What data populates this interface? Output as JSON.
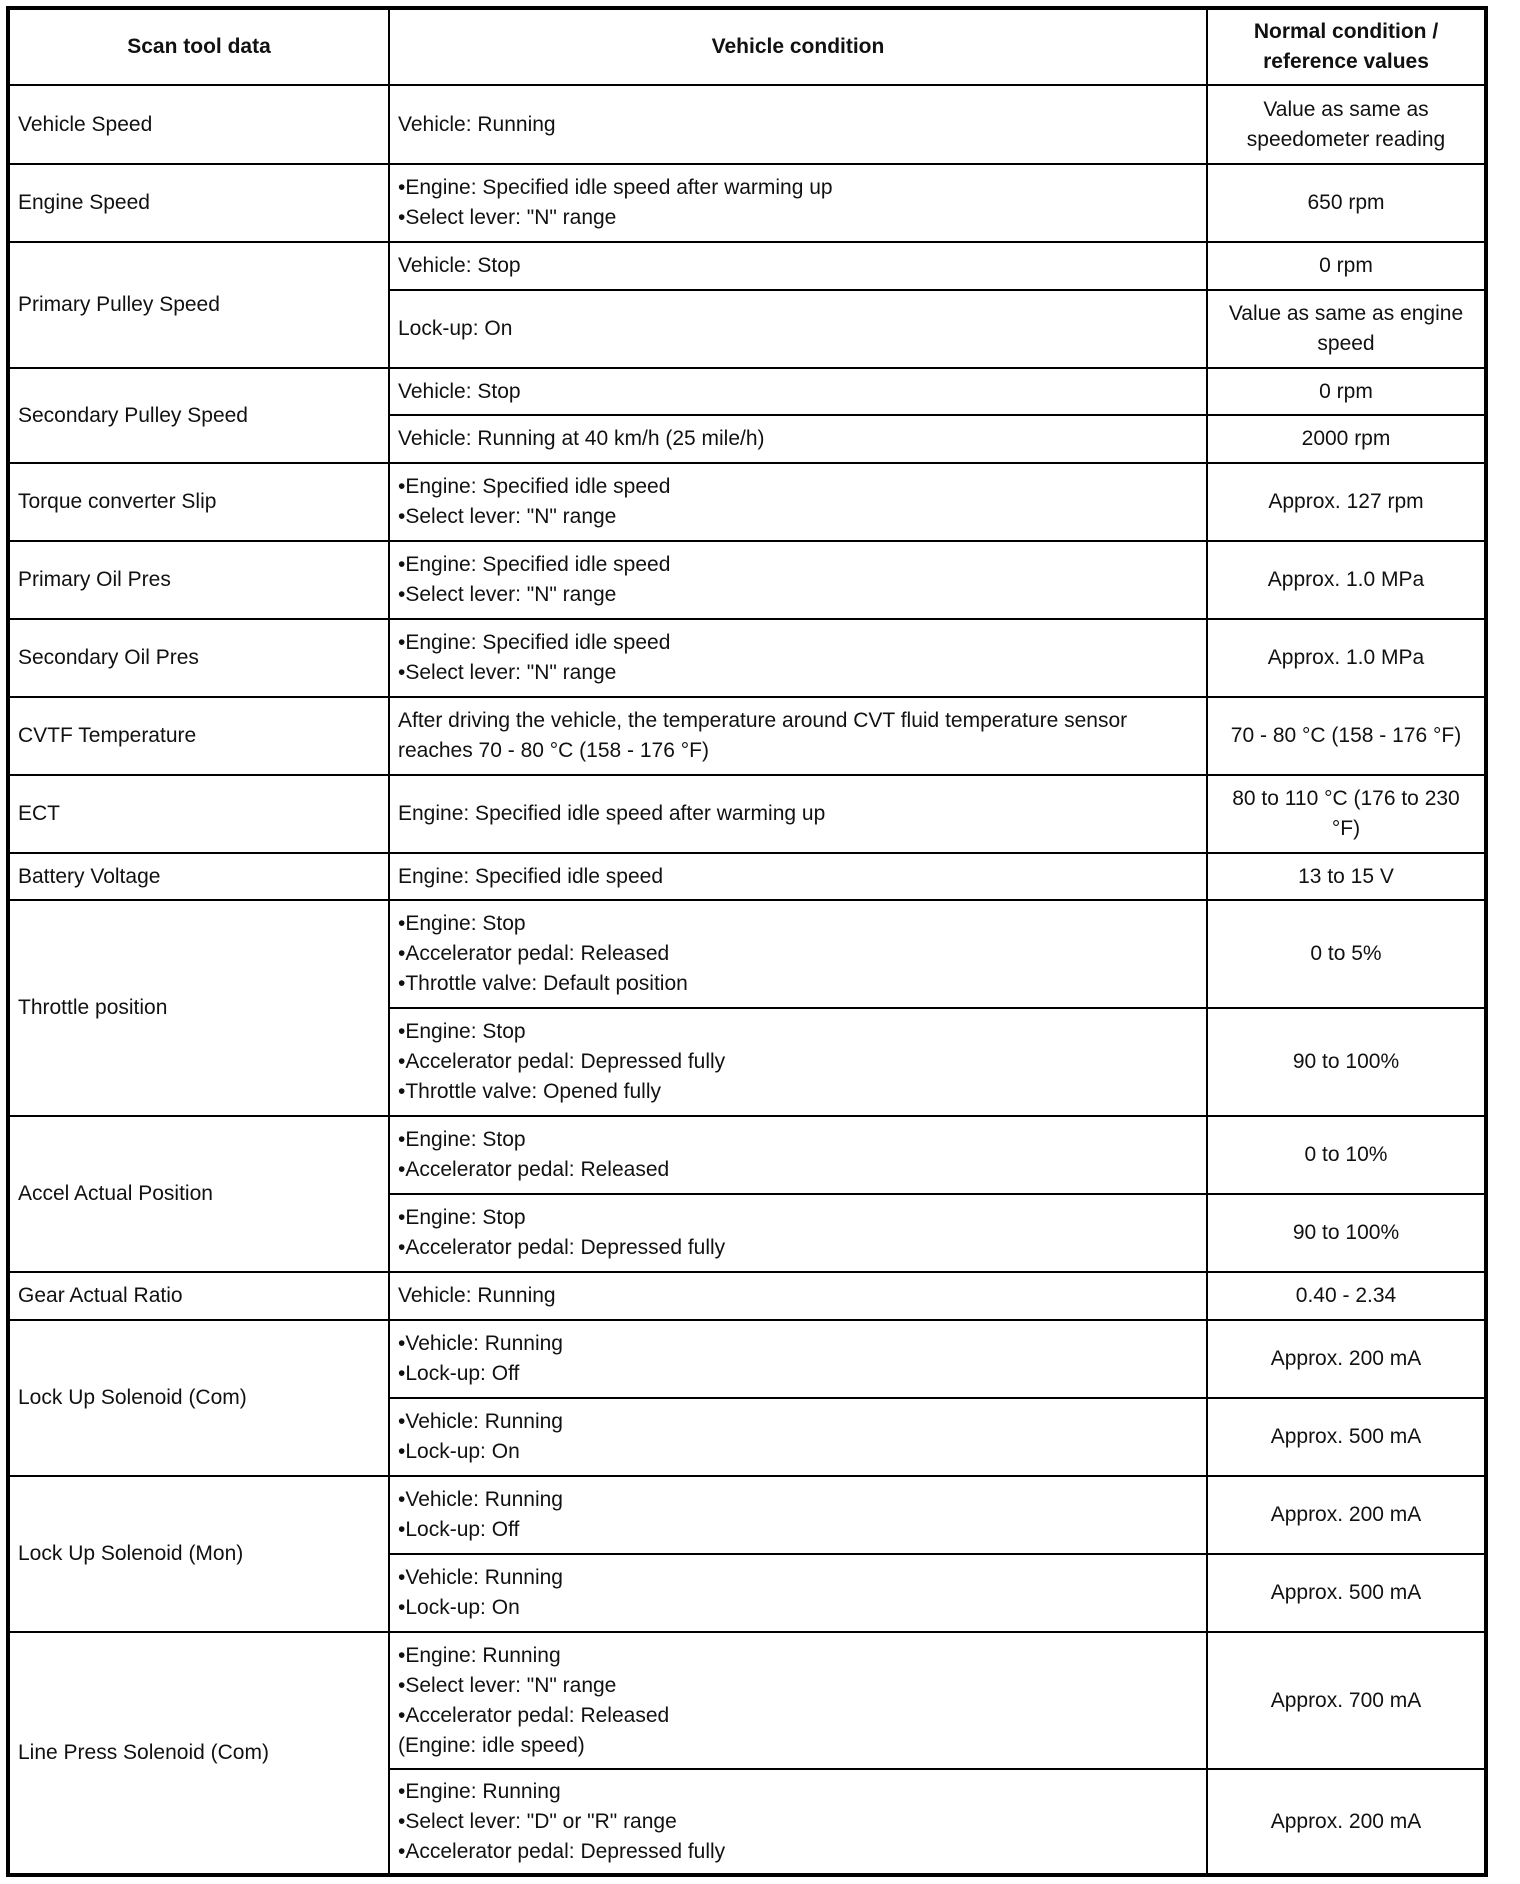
{
  "headers": [
    "Scan tool data",
    "Vehicle condition",
    "Normal condition / reference values"
  ],
  "items": [
    {
      "name": "Vehicle Speed",
      "conditions": [
        {
          "lines": [
            "Vehicle: Running"
          ],
          "value": "Value as same as speedometer reading"
        }
      ]
    },
    {
      "name": "Engine Speed",
      "conditions": [
        {
          "lines": [
            "•Engine: Specified idle speed after warming up",
            "•Select lever: \"N\" range"
          ],
          "value": "650 rpm"
        }
      ]
    },
    {
      "name": "Primary Pulley Speed",
      "conditions": [
        {
          "lines": [
            "Vehicle: Stop"
          ],
          "value": "0 rpm"
        },
        {
          "lines": [
            "Lock-up: On"
          ],
          "value": "Value as same as engine speed"
        }
      ]
    },
    {
      "name": "Secondary Pulley Speed",
      "conditions": [
        {
          "lines": [
            "Vehicle: Stop"
          ],
          "value": "0 rpm"
        },
        {
          "lines": [
            "Vehicle: Running at 40 km/h (25 mile/h)"
          ],
          "value": "2000 rpm"
        }
      ]
    },
    {
      "name": "Torque converter Slip",
      "conditions": [
        {
          "lines": [
            "•Engine: Specified idle speed",
            "•Select lever: \"N\" range"
          ],
          "value": "Approx. 127 rpm"
        }
      ]
    },
    {
      "name": "Primary Oil Pres",
      "conditions": [
        {
          "lines": [
            "•Engine: Specified idle speed",
            "•Select lever: \"N\" range"
          ],
          "value": "Approx. 1.0 MPa"
        }
      ]
    },
    {
      "name": "Secondary Oil Pres",
      "conditions": [
        {
          "lines": [
            "•Engine: Specified idle speed",
            "•Select lever: \"N\" range"
          ],
          "value": "Approx. 1.0 MPa"
        }
      ]
    },
    {
      "name": "CVTF Temperature",
      "conditions": [
        {
          "lines": [
            "After driving the vehicle, the temperature around CVT fluid temperature sensor reaches 70 - 80 °C (158 - 176 °F)"
          ],
          "value": "70 - 80 °C (158 - 176 °F)"
        }
      ]
    },
    {
      "name": "ECT",
      "conditions": [
        {
          "lines": [
            "Engine: Specified idle speed after warming up"
          ],
          "value": "80 to 110 °C (176 to 230 °F)"
        }
      ]
    },
    {
      "name": "Battery Voltage",
      "conditions": [
        {
          "lines": [
            "Engine: Specified idle speed"
          ],
          "value": "13 to 15 V"
        }
      ]
    },
    {
      "name": "Throttle position",
      "conditions": [
        {
          "lines": [
            "•Engine: Stop",
            "•Accelerator pedal: Released",
            "•Throttle valve: Default position"
          ],
          "value": "0 to 5%"
        },
        {
          "lines": [
            "•Engine: Stop",
            "•Accelerator pedal: Depressed fully",
            "•Throttle valve: Opened fully"
          ],
          "value": "90 to 100%"
        }
      ]
    },
    {
      "name": "Accel Actual Position",
      "conditions": [
        {
          "lines": [
            "•Engine: Stop",
            "•Accelerator pedal: Released"
          ],
          "value": "0 to 10%"
        },
        {
          "lines": [
            "•Engine: Stop",
            "•Accelerator pedal: Depressed fully"
          ],
          "value": "90 to 100%"
        }
      ]
    },
    {
      "name": "Gear Actual Ratio",
      "conditions": [
        {
          "lines": [
            "Vehicle: Running"
          ],
          "value": "0.40 - 2.34"
        }
      ]
    },
    {
      "name": "Lock Up Solenoid (Com)",
      "conditions": [
        {
          "lines": [
            "•Vehicle: Running",
            "•Lock-up: Off"
          ],
          "value": "Approx. 200 mA"
        },
        {
          "lines": [
            "•Vehicle: Running",
            "•Lock-up: On"
          ],
          "value": "Approx. 500 mA"
        }
      ]
    },
    {
      "name": "Lock Up Solenoid (Mon)",
      "conditions": [
        {
          "lines": [
            "•Vehicle: Running",
            "•Lock-up: Off"
          ],
          "value": "Approx. 200 mA"
        },
        {
          "lines": [
            "•Vehicle: Running",
            "•Lock-up: On"
          ],
          "value": "Approx. 500 mA"
        }
      ]
    },
    {
      "name": "Line Press Solenoid (Com)",
      "conditions": [
        {
          "lines": [
            "•Engine: Running",
            "•Select lever: \"N\" range",
            "•Accelerator pedal: Released",
            "(Engine: idle speed)"
          ],
          "value": "Approx. 700 mA"
        },
        {
          "lines": [
            "•Engine: Running",
            "•Select lever: \"D\" or \"R\" range",
            "•Accelerator pedal: Depressed fully"
          ],
          "value": "Approx. 200 mA"
        }
      ]
    }
  ]
}
